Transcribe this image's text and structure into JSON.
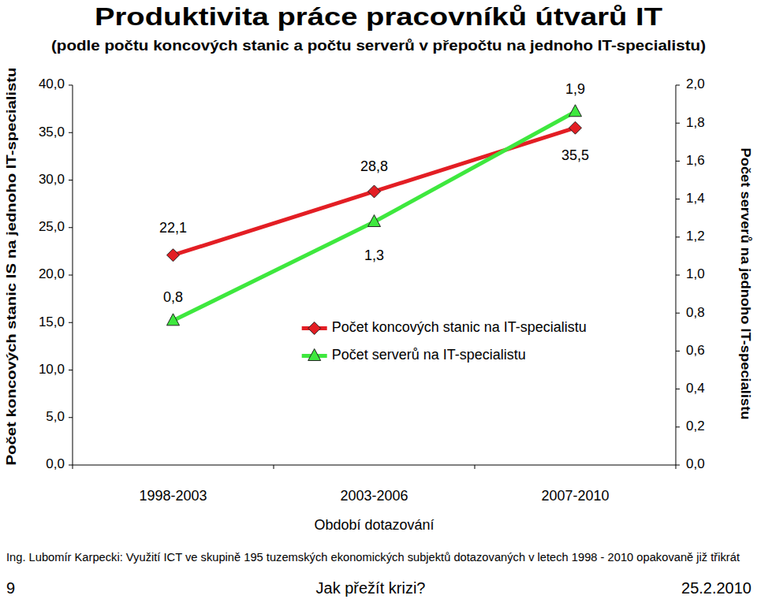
{
  "chart_data": {
    "type": "line",
    "title": "Produktivita práce pracovníků útvarů IT",
    "subtitle": "(podle počtu koncových stanic a počtu serverů v přepočtu na jednoho IT-specialistu)",
    "xlabel": "Období dotazování",
    "ylabel": "Počet koncových stanic IS na jednoho IT-specialistu",
    "y2label": "Počet serverů na jednoho IT-specialistu",
    "annotations": [
      "Ing. Lubomír Karpecki: Využití ICT ve skupině 195 tuzemských ekonomických subjektů dotazovaných v letech 1998 - 2010 opakovaně již třikrát",
      "9",
      "Jak přežít krizi?",
      "25.2.2010"
    ],
    "categories": [
      "1998-2003",
      "2003-2006",
      "2007-2010"
    ],
    "series": [
      {
        "name": "Počet koncových stanic na IT-specialistu",
        "color": "#e31e24",
        "marker": "diamond",
        "line_style": "solid",
        "values": [
          22.1,
          28.8,
          35.5
        ],
        "value_labels": [
          "22,1",
          "28,8",
          "35,5"
        ]
      },
      {
        "name": "Počet serverů na IT-specialistu",
        "color": "#3ee83e",
        "marker": "triangle",
        "line_style": "solid",
        "axis": "y2",
        "values": [
          0.76,
          1.28,
          1.86
        ],
        "value_labels": [
          "0,8",
          "1,3",
          "1,9"
        ]
      }
    ],
    "ylim": [
      0,
      40
    ],
    "yticks": [
      {
        "value": 0,
        "label": "0,0"
      },
      {
        "value": 5,
        "label": "5,0"
      },
      {
        "value": 10,
        "label": "10,0"
      },
      {
        "value": 15,
        "label": "15,0"
      },
      {
        "value": 20,
        "label": "20,0"
      },
      {
        "value": 25,
        "label": "25,0"
      },
      {
        "value": 30,
        "label": "30,0"
      },
      {
        "value": 35,
        "label": "35,0"
      },
      {
        "value": 40,
        "label": "40,0"
      }
    ],
    "y2lim": [
      0,
      2
    ],
    "y2ticks": [
      {
        "value": 0,
        "label": "0,0"
      },
      {
        "value": 0.2,
        "label": "0,2"
      },
      {
        "value": 0.4,
        "label": "0,4"
      },
      {
        "value": 0.6,
        "label": "0,6"
      },
      {
        "value": 0.8,
        "label": "0,8"
      },
      {
        "value": 1.0,
        "label": "1,0"
      },
      {
        "value": 1.2,
        "label": "1,2"
      },
      {
        "value": 1.4,
        "label": "1,4"
      },
      {
        "value": 1.6,
        "label": "1,6"
      },
      {
        "value": 1.8,
        "label": "1,8"
      },
      {
        "value": 2.0,
        "label": "2,0"
      }
    ],
    "grid": false,
    "legend": "center",
    "data_labels": true
  }
}
